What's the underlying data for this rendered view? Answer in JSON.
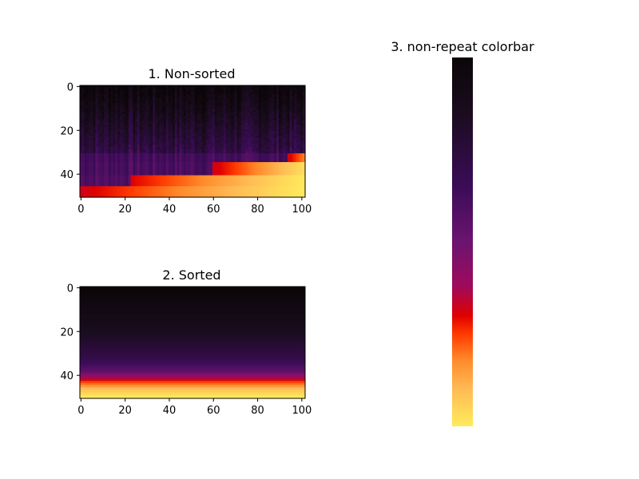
{
  "chart_data": [
    {
      "type": "heatmap",
      "title": "1. Non-sorted",
      "xlabel": "",
      "ylabel": "",
      "xlim": [
        -0.5,
        101.5
      ],
      "ylim": [
        50.5,
        -0.5
      ],
      "xticks": [
        0,
        20,
        40,
        60,
        80,
        100
      ],
      "yticks": [
        0,
        20,
        40
      ],
      "colormap": "inferno-like (black-purple-red-orange-yellow)",
      "grid": false,
      "rows": [
        {
          "y_start": -0.5,
          "y_end": 30.5,
          "values": "noisy dark, 0.02–0.35 (black to dark purple)"
        },
        {
          "y_start": 30.5,
          "y_end": 34.5,
          "x_bright_start": 94,
          "values": "purple left, red at x≈94, orange to right"
        },
        {
          "y_start": 34.5,
          "y_end": 40.5,
          "x_bright_start": 60,
          "values": "purple left, red x≈60–75, orange to yellow at right"
        },
        {
          "y_start": 40.5,
          "y_end": 45.5,
          "x_bright_start": 23,
          "values": "purple for x<23, red–orange x≈23–55, yellow to right"
        },
        {
          "y_start": 45.5,
          "y_end": 50.5,
          "x_bright_start": 0,
          "values": "red x≈0–15, orange x≈15–40, yellow to right"
        }
      ]
    },
    {
      "type": "heatmap",
      "title": "2. Sorted",
      "xlabel": "",
      "ylabel": "",
      "xlim": [
        -0.5,
        101.5
      ],
      "ylim": [
        50.5,
        -0.5
      ],
      "xticks": [
        0,
        20,
        40,
        60,
        80,
        100
      ],
      "yticks": [
        0,
        20,
        40
      ],
      "colormap": "inferno-like",
      "grid": false,
      "row_gradient": [
        {
          "y": 0,
          "value": 0.0
        },
        {
          "y": 20,
          "value": 0.15
        },
        {
          "y": 32,
          "value": 0.3
        },
        {
          "y": 38,
          "value": 0.45
        },
        {
          "y": 41,
          "value": 0.62
        },
        {
          "y": 43,
          "value": 0.75
        },
        {
          "y": 46,
          "value": 0.9
        },
        {
          "y": 50,
          "value": 1.0
        }
      ]
    },
    {
      "type": "colorbar",
      "title": "3. non-repeat colorbar",
      "orientation": "vertical",
      "colormap_top_to_bottom": [
        {
          "stop": 0.0,
          "color": "#0b0608"
        },
        {
          "stop": 0.15,
          "color": "#1a0c1e"
        },
        {
          "stop": 0.35,
          "color": "#3b0c57"
        },
        {
          "stop": 0.5,
          "color": "#6b1470"
        },
        {
          "stop": 0.62,
          "color": "#9e0a5c"
        },
        {
          "stop": 0.7,
          "color": "#e00000"
        },
        {
          "stop": 0.75,
          "color": "#ff3a00"
        },
        {
          "stop": 0.82,
          "color": "#ff8a2a"
        },
        {
          "stop": 0.9,
          "color": "#ffbb55"
        },
        {
          "stop": 1.0,
          "color": "#ffeb5c"
        }
      ]
    }
  ],
  "palette": {
    "c0": "#0b0608",
    "c1": "#1a0c1e",
    "c2": "#2c0c3e",
    "c3": "#420f5d",
    "c4": "#6b1470",
    "c5": "#9e0a5c",
    "c6": "#d10a1b",
    "c7": "#ff3a00",
    "c8": "#ff8a2a",
    "c9": "#ffbb55",
    "c10": "#ffeb5c"
  }
}
